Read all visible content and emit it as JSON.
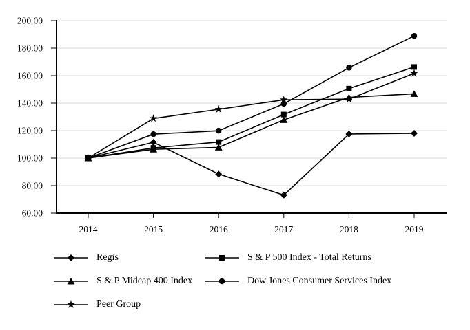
{
  "chart_data": {
    "type": "line",
    "x": [
      2014,
      2015,
      2016,
      2017,
      2018,
      2019
    ],
    "series": [
      {
        "name": "Regis",
        "marker": "diamond",
        "values": [
          100.0,
          111.5,
          88.4,
          73.1,
          117.5,
          118.0
        ]
      },
      {
        "name": "S & P 500 Index - Total Returns",
        "marker": "square",
        "values": [
          100.0,
          107.4,
          111.7,
          131.7,
          150.6,
          166.3
        ]
      },
      {
        "name": "S & P Midcap 400 Index",
        "marker": "triangle",
        "values": [
          100.0,
          106.4,
          107.8,
          127.8,
          144.2,
          146.8
        ]
      },
      {
        "name": "Dow Jones Consumer Services Index",
        "marker": "circle",
        "values": [
          100.0,
          117.4,
          119.9,
          139.5,
          165.8,
          188.9
        ]
      },
      {
        "name": "Peer Group",
        "marker": "star",
        "values": [
          100.0,
          128.8,
          135.5,
          142.4,
          142.9,
          161.7
        ]
      }
    ],
    "title": "",
    "xlabel": "",
    "ylabel": "",
    "ylim": [
      60,
      200
    ],
    "ytick_step": 20,
    "ytick_decimals": 2,
    "grid": true,
    "legend_position": "bottom",
    "line_color": "#000000",
    "grid_color": "#d9d9d9",
    "axis_color": "#000000",
    "background": "#ffffff"
  }
}
